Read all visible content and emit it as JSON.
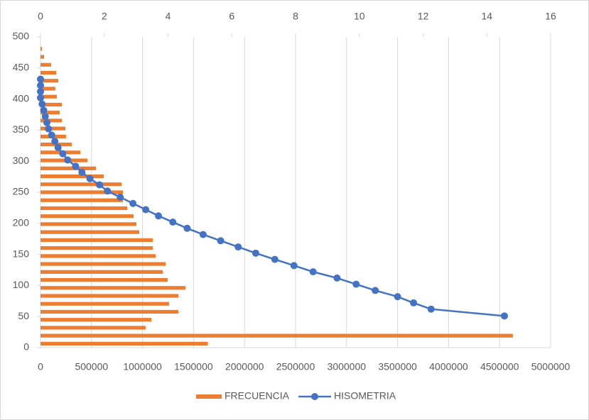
{
  "chart_data": {
    "type": "bar",
    "orientation": "horizontal",
    "categories": [
      null,
      null,
      null,
      null,
      null,
      null,
      null,
      null,
      null,
      null,
      null,
      null,
      null,
      null,
      null,
      null,
      null,
      null,
      null,
      null,
      null,
      null,
      null,
      null,
      null,
      null,
      null,
      null,
      null,
      null,
      null,
      null,
      null,
      null,
      null,
      null,
      null,
      null,
      null
    ],
    "xlim": [
      0,
      5000000
    ],
    "xticks": [
      0,
      500000,
      1000000,
      1500000,
      2000000,
      2500000,
      3000000,
      3500000,
      4000000,
      4500000,
      5000000
    ],
    "ylim": [
      0,
      500
    ],
    "yticks": [
      0,
      50,
      100,
      150,
      200,
      250,
      300,
      350,
      400,
      450,
      500
    ],
    "x2lim": [
      0,
      16
    ],
    "x2ticks": [
      0,
      2,
      4,
      6,
      8,
      10,
      12,
      14,
      16
    ],
    "grid": true,
    "legend": "bottom",
    "series": [
      {
        "name": "FRECUENCIA",
        "color": "#ed7d31",
        "type": "bar",
        "values": [
          1640000,
          4630000,
          1030000,
          1086000,
          1351000,
          1260000,
          1351000,
          1420000,
          1246000,
          1198000,
          1226000,
          1128000,
          1100000,
          1100000,
          968000,
          940000,
          912000,
          850000,
          808000,
          808000,
          794000,
          620000,
          543000,
          460000,
          390000,
          306000,
          250000,
          244000,
          209000,
          188000,
          209000,
          160000,
          146000,
          174000,
          153000,
          104000,
          35000,
          14000,
          0
        ]
      },
      {
        "name": "HISOMETRIA",
        "color": "#4472c4",
        "type": "line",
        "axis": "x2",
        "x": [
          14.55,
          12.25,
          11.7,
          11.2,
          10.5,
          9.9,
          9.3,
          8.55,
          7.95,
          7.35,
          6.75,
          6.2,
          5.65,
          5.1,
          4.6,
          4.15,
          3.7,
          3.3,
          2.9,
          2.5,
          2.1,
          1.85,
          1.55,
          1.3,
          1.1,
          0.85,
          0.7,
          0.55,
          0.45,
          0.35,
          0.25,
          0.2,
          0.15,
          0.1,
          0.05,
          0,
          0,
          0,
          0
        ],
        "y": [
          51,
          62,
          72,
          82,
          92,
          102,
          112,
          122,
          132,
          142,
          152,
          162,
          172,
          182,
          192,
          202,
          212,
          222,
          232,
          242,
          252,
          262,
          272,
          282,
          292,
          302,
          312,
          322,
          332,
          342,
          352,
          362,
          372,
          382,
          392,
          402,
          412,
          422,
          432
        ]
      }
    ]
  }
}
